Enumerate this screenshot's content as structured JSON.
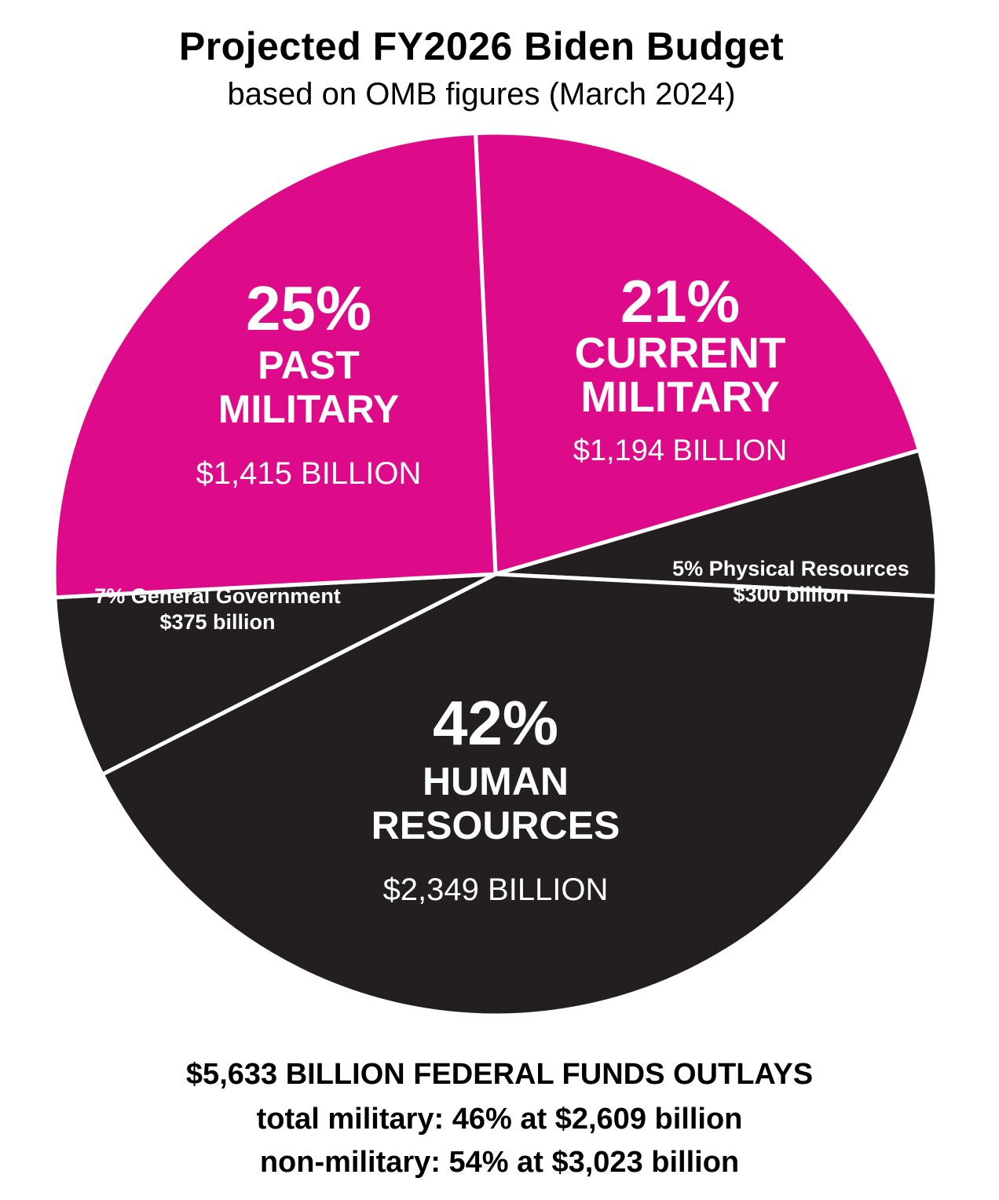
{
  "chart_data": {
    "type": "pie",
    "title": "Projected FY2026 Biden Budget",
    "subtitle": "based on OMB figures (March 2024)",
    "slices": [
      {
        "name": "CURRENT MILITARY",
        "percent_label": "21%",
        "amount_label": "$1,194 BILLION",
        "value": 1194,
        "color": "#dd0b8a",
        "label_style": "large",
        "name_lines": [
          "CURRENT",
          "MILITARY"
        ]
      },
      {
        "name": "Physical Resources",
        "percent_label": "5%",
        "amount_label": "$300 billion",
        "value": 300,
        "color": "#231f20",
        "label_style": "small",
        "name_lines": [
          "5% Physical  Resources"
        ]
      },
      {
        "name": "HUMAN RESOURCES",
        "percent_label": "42%",
        "amount_label": "$2,349 BILLION",
        "value": 2349,
        "color": "#231f20",
        "label_style": "large",
        "name_lines": [
          "HUMAN",
          "RESOURCES"
        ]
      },
      {
        "name": "General Government",
        "percent_label": "7%",
        "amount_label": "$375 billion",
        "value": 375,
        "color": "#231f20",
        "label_style": "small",
        "name_lines": [
          "7% General Government"
        ]
      },
      {
        "name": "PAST MILITARY",
        "percent_label": "25%",
        "amount_label": "$1,415 BILLION",
        "value": 1415,
        "color": "#dd0b8a",
        "label_style": "large",
        "name_lines": [
          "PAST",
          "MILITARY"
        ]
      }
    ],
    "slice_border_color": "#ffffff",
    "text_color_on_slice": "#ffffff"
  },
  "footer": {
    "total": "$5,633 BILLION FEDERAL FUNDS OUTLAYS",
    "military": "total military: 46% at $2,609 billion",
    "non_military": "non-military: 54% at $3,023 billion"
  }
}
